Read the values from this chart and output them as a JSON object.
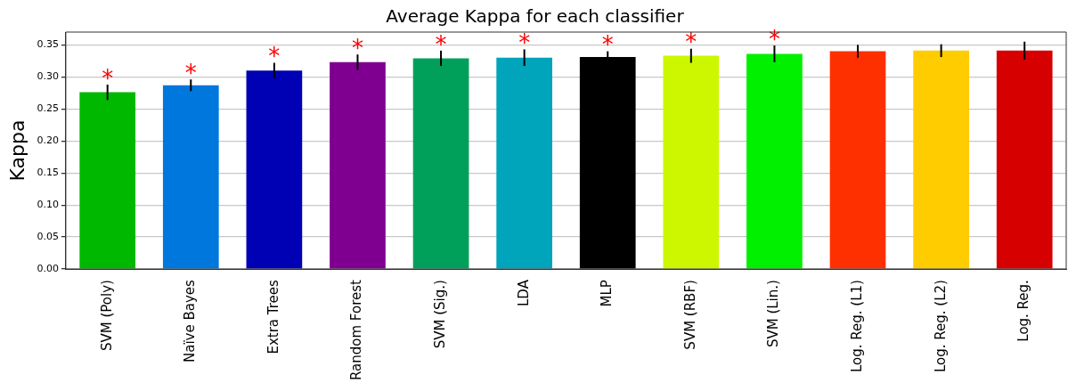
{
  "chart_data": {
    "type": "bar",
    "title": "Average Kappa for each classifier",
    "ylabel": "Kappa",
    "categories": [
      "SVM (Poly)",
      "Naïve Bayes",
      "Extra Trees",
      "Random Forest",
      "SVM (Sig.)",
      "LDA",
      "MLP",
      "SVM (RBF)",
      "SVM (Lin.)",
      "Log. Reg. (L1)",
      "Log. Reg. (L2)",
      "Log. Reg."
    ],
    "values": [
      0.276,
      0.287,
      0.31,
      0.323,
      0.329,
      0.33,
      0.331,
      0.333,
      0.336,
      0.34,
      0.341,
      0.341
    ],
    "errors": [
      0.012,
      0.009,
      0.012,
      0.012,
      0.012,
      0.013,
      0.009,
      0.011,
      0.013,
      0.01,
      0.01,
      0.014
    ],
    "colors": [
      "#00b800",
      "#0077dd",
      "#0000b4",
      "#7f0090",
      "#00a05a",
      "#00a4bb",
      "#000000",
      "#ccf700",
      "#00f000",
      "#ff3000",
      "#ffcc00",
      "#d60000"
    ],
    "ylim": [
      0,
      0.37
    ],
    "yticks": [
      {
        "value": 0,
        "label": "0.00"
      },
      {
        "value": 0.05,
        "label": "0.05"
      },
      {
        "value": 0.1,
        "label": "0.10"
      },
      {
        "value": 0.15,
        "label": "0.15"
      },
      {
        "value": 0.2,
        "label": "0.20"
      },
      {
        "value": 0.25,
        "label": "0.25"
      },
      {
        "value": 0.3,
        "label": "0.30"
      },
      {
        "value": 0.35,
        "label": "0.35"
      }
    ],
    "grid": "y",
    "legend": false,
    "annotations": [
      {
        "text": "*",
        "x": "SVM (Poly)",
        "y": 0.276
      },
      {
        "text": "*",
        "x": "Naïve Bayes",
        "y": 0.287
      },
      {
        "text": "*",
        "x": "Extra Trees",
        "y": 0.31
      },
      {
        "text": "*",
        "x": "Random Forest",
        "y": 0.323
      },
      {
        "text": "*",
        "x": "SVM (Sig.)",
        "y": 0.329
      },
      {
        "text": "*",
        "x": "LDA",
        "y": 0.33
      },
      {
        "text": "*",
        "x": "MLP",
        "y": 0.331
      },
      {
        "text": "*",
        "x": "SVM (RBF)",
        "y": 0.333
      },
      {
        "text": "*",
        "x": "SVM (Lin.)",
        "y": 0.336
      }
    ]
  }
}
